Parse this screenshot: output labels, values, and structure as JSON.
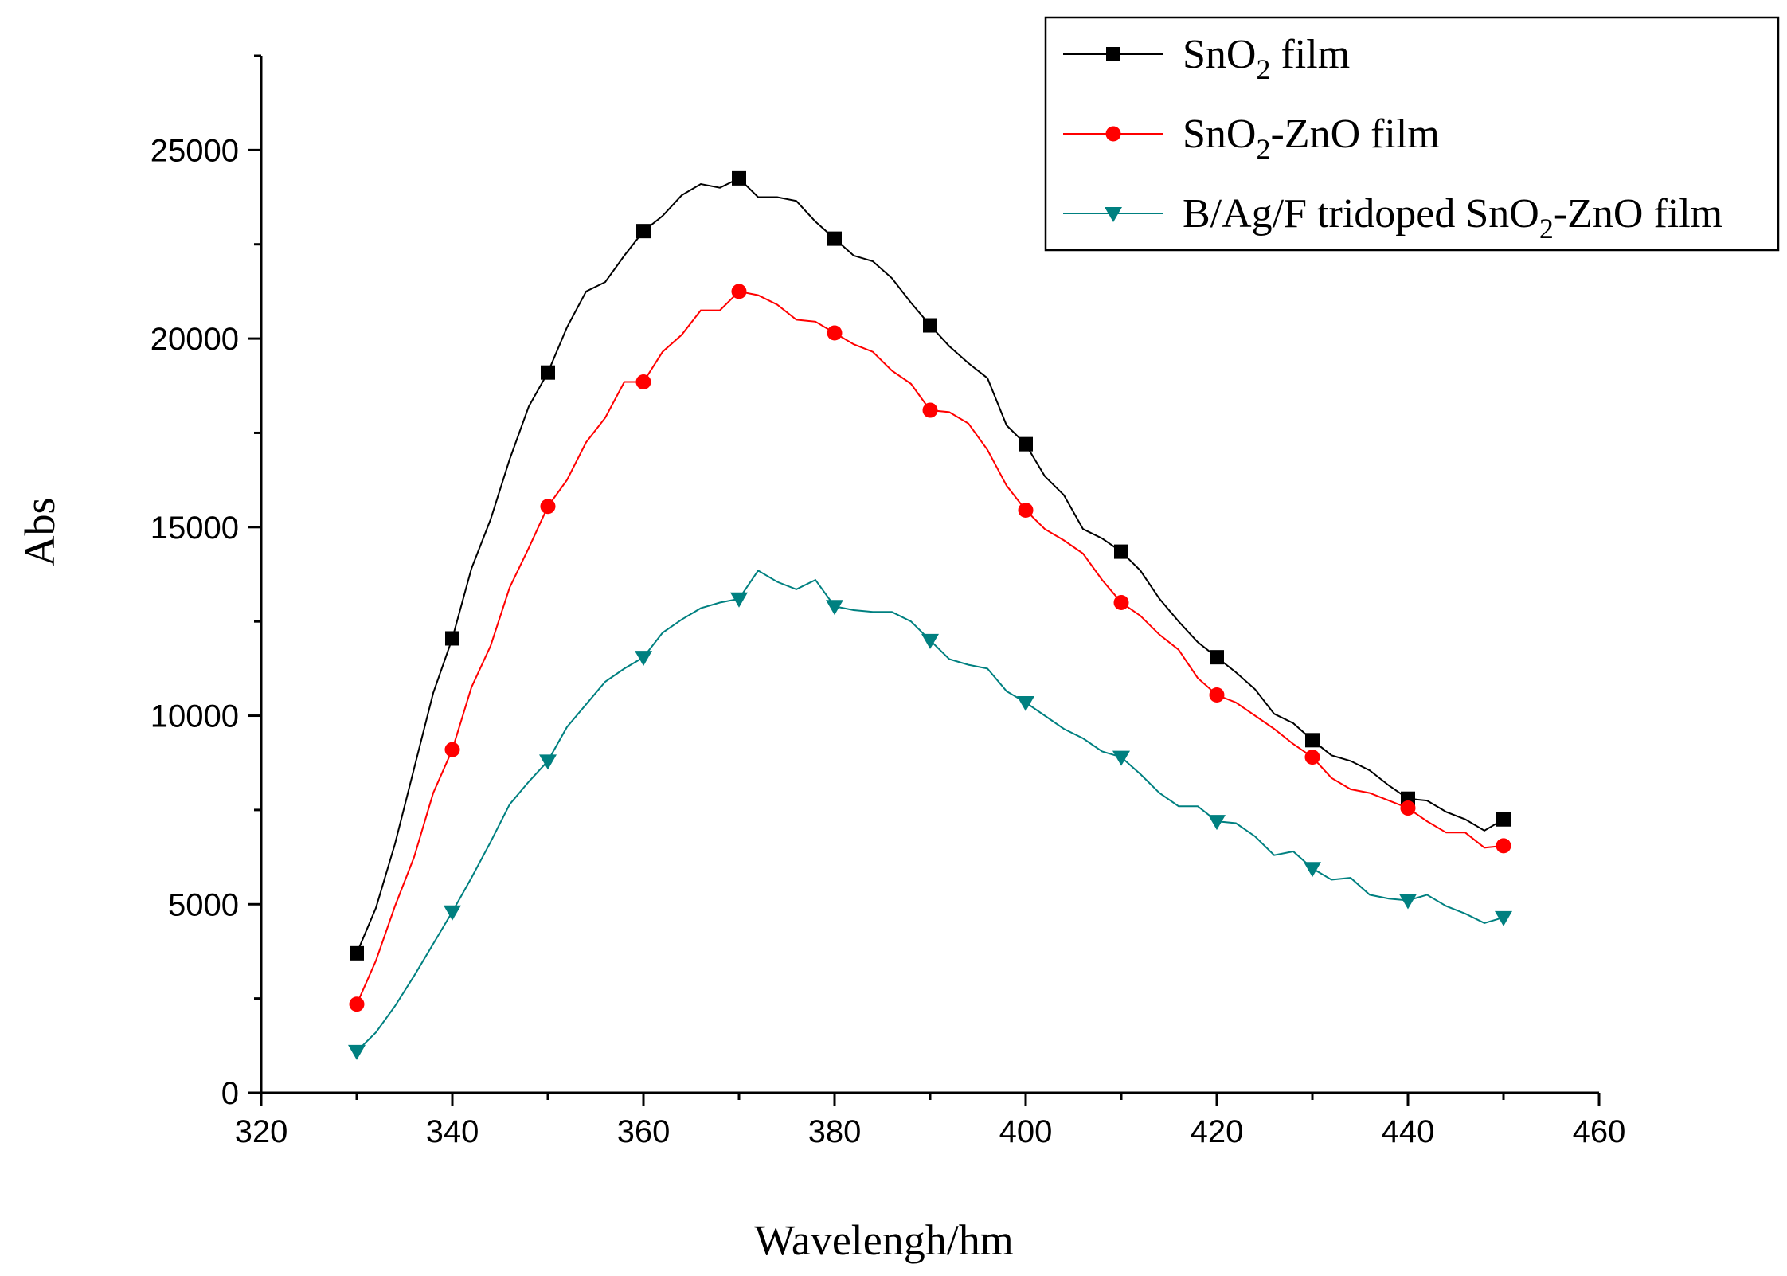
{
  "chart_data": {
    "type": "line",
    "title": "",
    "xlabel": "Wavelengh/hm",
    "ylabel": "Abs",
    "xlim": [
      320,
      460
    ],
    "ylim": [
      0,
      27500
    ],
    "xticks": [
      320,
      340,
      360,
      380,
      400,
      420,
      440,
      460
    ],
    "yticks": [
      0,
      5000,
      10000,
      15000,
      20000,
      25000
    ],
    "grid": false,
    "legend_position": "top-right",
    "x": [
      330,
      332,
      334,
      336,
      338,
      340,
      342,
      344,
      346,
      348,
      350,
      352,
      354,
      356,
      358,
      360,
      362,
      364,
      366,
      368,
      370,
      372,
      374,
      376,
      378,
      380,
      382,
      384,
      386,
      388,
      390,
      392,
      394,
      396,
      398,
      400,
      402,
      404,
      406,
      408,
      410,
      412,
      414,
      416,
      418,
      420,
      422,
      424,
      426,
      428,
      430,
      432,
      434,
      436,
      438,
      440,
      442,
      444,
      446,
      448,
      450
    ],
    "marker_x": [
      330,
      340,
      350,
      360,
      370,
      380,
      390,
      400,
      410,
      420,
      430,
      440,
      450
    ],
    "series": [
      {
        "name": "SnO2 film",
        "legend_parts": [
          "SnO",
          "2",
          " film"
        ],
        "color": "#000000",
        "marker": "square",
        "values": [
          3700,
          4900,
          6600,
          8600,
          10600,
          12050,
          13900,
          15200,
          16800,
          18200,
          19100,
          20300,
          21250,
          21500,
          22200,
          22850,
          23250,
          23800,
          24100,
          24000,
          24250,
          23750,
          23750,
          23650,
          23100,
          22650,
          22200,
          22050,
          21600,
          20950,
          20350,
          19800,
          19350,
          18950,
          17700,
          17200,
          16350,
          15850,
          14950,
          14700,
          14350,
          13850,
          13100,
          12500,
          11950,
          11550,
          11150,
          10700,
          10050,
          9800,
          9350,
          8950,
          8800,
          8550,
          8150,
          7800,
          7750,
          7450,
          7250,
          6950,
          7250
        ]
      },
      {
        "name": "SnO2-ZnO film",
        "legend_parts": [
          "SnO",
          "2",
          "-ZnO film"
        ],
        "color": "#ff0000",
        "marker": "circle",
        "values": [
          2350,
          3500,
          4950,
          6250,
          7950,
          9100,
          10750,
          11850,
          13400,
          14450,
          15550,
          16250,
          17250,
          17900,
          18850,
          18850,
          19650,
          20100,
          20750,
          20750,
          21250,
          21150,
          20900,
          20500,
          20450,
          20150,
          19850,
          19650,
          19150,
          18800,
          18100,
          18050,
          17750,
          17050,
          16100,
          15450,
          14950,
          14650,
          14300,
          13600,
          13000,
          12650,
          12150,
          11750,
          11000,
          10550,
          10350,
          10000,
          9650,
          9250,
          8900,
          8350,
          8050,
          7950,
          7750,
          7550,
          7200,
          6900,
          6900,
          6500,
          6550
        ]
      },
      {
        "name": "B/Ag/F tridoped SnO2-ZnO film",
        "legend_parts": [
          "B/Ag/F tridoped SnO",
          "2",
          "-ZnO film"
        ],
        "color": "#008080",
        "marker": "triangle-down",
        "values": [
          1100,
          1600,
          2300,
          3100,
          3950,
          4800,
          5700,
          6650,
          7650,
          8250,
          8800,
          9700,
          10300,
          10900,
          11250,
          11550,
          12200,
          12550,
          12850,
          13000,
          13100,
          13850,
          13550,
          13350,
          13600,
          12900,
          12800,
          12750,
          12750,
          12500,
          12000,
          11500,
          11350,
          11250,
          10650,
          10350,
          10000,
          9650,
          9400,
          9050,
          8900,
          8450,
          7950,
          7600,
          7600,
          7200,
          7150,
          6800,
          6300,
          6400,
          5950,
          5650,
          5700,
          5250,
          5150,
          5100,
          5250,
          4950,
          4750,
          4500,
          4650
        ]
      }
    ]
  }
}
